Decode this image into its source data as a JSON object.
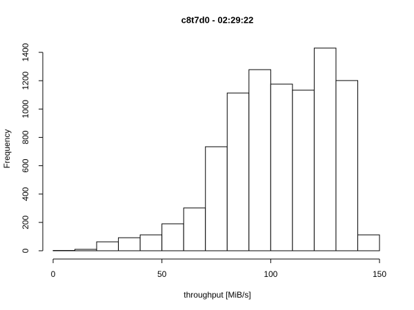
{
  "chart_data": {
    "type": "histogram",
    "title": "c8t7d0 - 02:29:22",
    "x_label": "throughput [MiB/s]",
    "y_label": "Frequency",
    "bins": [
      0,
      10,
      20,
      30,
      40,
      50,
      60,
      70,
      80,
      90,
      100,
      110,
      120,
      130,
      140,
      150
    ],
    "values": [
      2,
      10,
      63,
      92,
      112,
      190,
      302,
      734,
      1113,
      1278,
      1176,
      1133,
      1430,
      1201,
      112
    ],
    "color": "#ffffff",
    "xlim": [
      0,
      150
    ],
    "xticks": [
      0,
      50,
      100,
      150
    ],
    "ylim": [
      0,
      1400
    ],
    "yticks": [
      0,
      200,
      400,
      600,
      800,
      1000,
      1200,
      1400
    ]
  }
}
